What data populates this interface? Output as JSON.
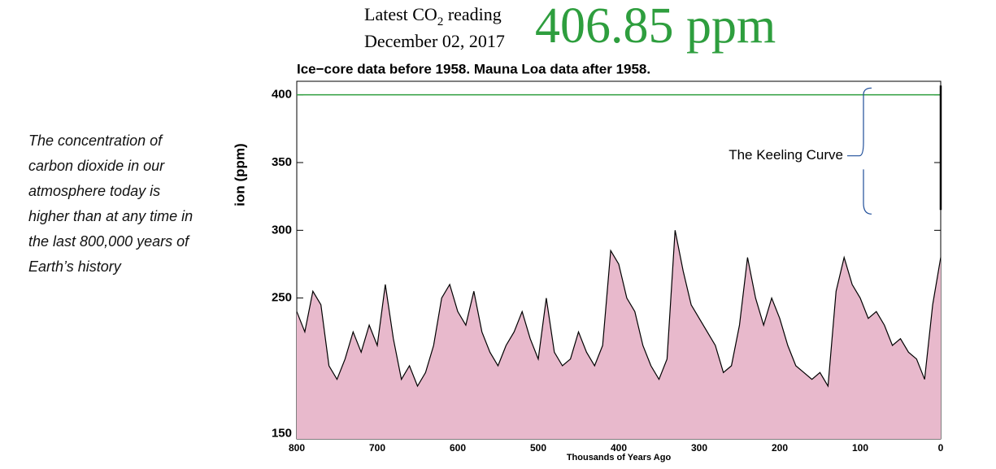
{
  "sidebar": "The concentration of carbon dioxide in our atmosphere today is higher than at any time in the last 800,000 years of Earth’s history",
  "header": {
    "label_prefix": "Latest CO",
    "label_sub": "2",
    "label_suffix": " reading",
    "date": "December 02, 2017",
    "reading": "406.85 ppm"
  },
  "chart_data": {
    "type": "line",
    "title": "Ice−core data before 1958. Mauna Loa data after 1958.",
    "ylabel": "ion (ppm)",
    "xlabel": "Thousands of Years Ago",
    "annotation": "The Keeling Curve",
    "reference_line": {
      "value": 400,
      "color": "#2e9e3e"
    },
    "series": [
      {
        "color": "#000000",
        "fill": "#e8b9cc",
        "x": [
          800,
          790,
          780,
          770,
          760,
          750,
          740,
          730,
          720,
          710,
          700,
          690,
          680,
          670,
          660,
          650,
          640,
          630,
          620,
          610,
          600,
          590,
          580,
          570,
          560,
          550,
          540,
          530,
          520,
          510,
          500,
          490,
          480,
          470,
          460,
          450,
          440,
          430,
          420,
          410,
          400,
          390,
          380,
          370,
          360,
          350,
          340,
          330,
          320,
          310,
          300,
          290,
          280,
          270,
          260,
          250,
          240,
          230,
          220,
          210,
          200,
          190,
          180,
          170,
          160,
          150,
          140,
          130,
          120,
          110,
          100,
          90,
          80,
          70,
          60,
          50,
          40,
          30,
          20,
          10,
          0
        ],
        "values": [
          240,
          225,
          255,
          245,
          200,
          190,
          205,
          225,
          210,
          230,
          215,
          260,
          220,
          190,
          200,
          185,
          195,
          215,
          250,
          260,
          240,
          230,
          255,
          225,
          210,
          200,
          215,
          225,
          240,
          220,
          205,
          250,
          210,
          200,
          205,
          225,
          210,
          200,
          215,
          285,
          275,
          250,
          240,
          215,
          200,
          190,
          205,
          300,
          270,
          245,
          235,
          225,
          215,
          195,
          200,
          230,
          280,
          250,
          230,
          250,
          235,
          215,
          200,
          195,
          190,
          195,
          185,
          255,
          280,
          260,
          250,
          235,
          240,
          230,
          215,
          220,
          210,
          205,
          190,
          245,
          280
        ]
      },
      {
        "color": "#000000",
        "x": [
          0,
          0
        ],
        "values": [
          315,
          406.85
        ]
      }
    ],
    "xlim": [
      800,
      0
    ],
    "xticks": [
      800,
      700,
      600,
      500,
      400,
      300,
      200,
      100,
      0
    ],
    "ylim": [
      146,
      410
    ],
    "yticks": [
      150,
      250,
      300,
      350,
      400
    ]
  }
}
